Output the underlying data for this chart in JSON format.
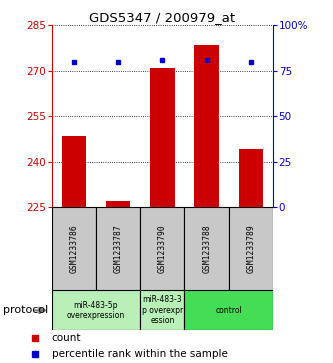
{
  "title": "GDS5347 / 200979_at",
  "samples": [
    "GSM1233786",
    "GSM1233787",
    "GSM1233790",
    "GSM1233788",
    "GSM1233789"
  ],
  "counts": [
    248.5,
    227.0,
    271.0,
    278.5,
    244.0
  ],
  "percentiles": [
    80,
    80,
    81,
    81,
    80
  ],
  "ymin": 225,
  "ymax": 285,
  "yticks_left": [
    225,
    240,
    255,
    270,
    285
  ],
  "yticks_right": [
    0,
    25,
    50,
    75,
    100
  ],
  "bar_color": "#cc0000",
  "dot_color": "#0000cc",
  "proto_groups": [
    {
      "start": 0,
      "end": 1,
      "label": "miR-483-5p\noverexpression",
      "color": "#b8f0b8"
    },
    {
      "start": 2,
      "end": 2,
      "label": "miR-483-3\np overexpr\nession",
      "color": "#b8f0b8"
    },
    {
      "start": 3,
      "end": 4,
      "label": "control",
      "color": "#44dd55"
    }
  ],
  "protocol_label": "protocol",
  "legend_count": "count",
  "legend_percentile": "percentile rank within the sample",
  "bar_width": 0.55,
  "base_value": 225
}
